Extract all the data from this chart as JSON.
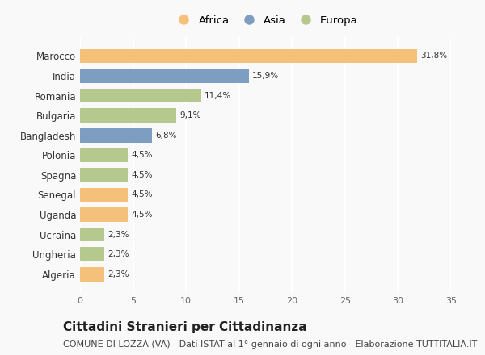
{
  "countries": [
    "Marocco",
    "India",
    "Romania",
    "Bulgaria",
    "Bangladesh",
    "Polonia",
    "Spagna",
    "Senegal",
    "Uganda",
    "Ucraina",
    "Ungheria",
    "Algeria"
  ],
  "values": [
    31.8,
    15.9,
    11.4,
    9.1,
    6.8,
    4.5,
    4.5,
    4.5,
    4.5,
    2.3,
    2.3,
    2.3
  ],
  "labels": [
    "31,8%",
    "15,9%",
    "11,4%",
    "9,1%",
    "6,8%",
    "4,5%",
    "4,5%",
    "4,5%",
    "4,5%",
    "2,3%",
    "2,3%",
    "2,3%"
  ],
  "continents": [
    "Africa",
    "Asia",
    "Europa",
    "Europa",
    "Asia",
    "Europa",
    "Europa",
    "Africa",
    "Africa",
    "Europa",
    "Europa",
    "Africa"
  ],
  "colors": {
    "Africa": "#F5C07A",
    "Asia": "#7D9EC0",
    "Europa": "#B5C98E"
  },
  "xlim": [
    0,
    35
  ],
  "xticks": [
    0,
    5,
    10,
    15,
    20,
    25,
    30,
    35
  ],
  "background_color": "#f9f9f9",
  "grid_color": "#ffffff",
  "title": "Cittadini Stranieri per Cittadinanza",
  "subtitle": "COMUNE DI LOZZA (VA) - Dati ISTAT al 1° gennaio di ogni anno - Elaborazione TUTTITALIA.IT",
  "title_fontsize": 11,
  "subtitle_fontsize": 8,
  "bar_height": 0.72
}
